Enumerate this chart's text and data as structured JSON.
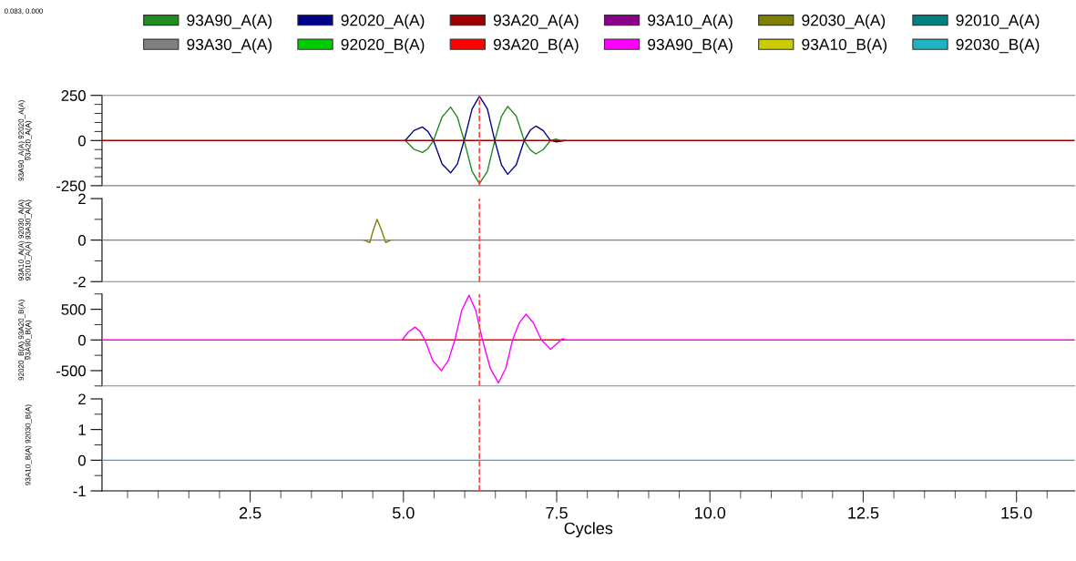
{
  "chart_data": [
    {
      "type": "line",
      "ylabel": "93A90_A(A) 92020_A(A) 93A20_A(A)",
      "annotations": [
        "0.083, 0.000"
      ],
      "legend": "top",
      "grid": false,
      "tick_labels": "y",
      "xlim": [
        0.083,
        15.95
      ],
      "ylim": [
        -250,
        250
      ],
      "yticks": [
        -250,
        {
          "value": -200,
          "label": null
        },
        {
          "value": -150,
          "label": null
        },
        {
          "value": -100,
          "label": null
        },
        {
          "value": -50,
          "label": null
        },
        0,
        {
          "value": 50,
          "label": null
        },
        {
          "value": 100,
          "label": null
        },
        {
          "value": 150,
          "label": null
        },
        {
          "value": 200,
          "label": null
        },
        250
      ],
      "ref_lines": [
        {
          "axis": "x",
          "value": 6.24,
          "color": "#ff4040",
          "line_style": "dashed"
        }
      ],
      "series": [
        {
          "name": "93A90_A(A)",
          "color": "#228b22",
          "x": [
            5.03,
            5.17,
            5.31,
            5.4,
            5.49,
            5.63,
            5.77,
            5.88,
            5.99,
            6.12,
            6.24,
            6.37,
            6.49,
            6.6,
            6.7,
            6.84,
            6.97,
            7.07,
            7.16,
            7.28,
            7.4,
            7.49,
            7.55
          ],
          "values": [
            0,
            -48,
            -66,
            -45,
            0,
            130,
            185,
            130,
            0,
            -170,
            -239,
            -170,
            0,
            135,
            189,
            135,
            0,
            -52,
            -74,
            -50,
            0,
            8,
            0
          ]
        },
        {
          "name": "92020_A(A)",
          "color": "#00008b",
          "x": [
            5.03,
            5.17,
            5.31,
            5.4,
            5.49,
            5.63,
            5.77,
            5.88,
            5.99,
            6.12,
            6.24,
            6.37,
            6.49,
            6.6,
            6.7,
            6.84,
            6.97,
            7.07,
            7.16,
            7.28,
            7.4,
            7.49,
            7.63
          ],
          "values": [
            0,
            55,
            75,
            50,
            0,
            -130,
            -179,
            -130,
            0,
            175,
            245,
            175,
            0,
            -135,
            -187,
            -135,
            0,
            58,
            80,
            55,
            0,
            -7,
            0
          ]
        },
        {
          "name": "93A20_A(A)",
          "color": "#9b0000",
          "x": [
            0.083,
            15.95
          ],
          "values": [
            0,
            0
          ]
        }
      ]
    },
    {
      "type": "line",
      "ylabel": "93A10_A(A) 92030_A(A) 92010_A(A) 93A30_A(A)",
      "legend": "top",
      "grid": false,
      "tick_labels": "y",
      "xlim": [
        0.083,
        15.95
      ],
      "ylim": [
        -2,
        2
      ],
      "yticks": [
        -2,
        {
          "value": -1,
          "label": null
        },
        0,
        {
          "value": 1,
          "label": null
        },
        2
      ],
      "ref_lines": [
        {
          "axis": "x",
          "value": 6.24,
          "color": "#ff4040",
          "line_style": "dashed"
        }
      ],
      "series": [
        {
          "name": "93A10_A(A)",
          "color": "#8b008b"
        },
        {
          "name": "92030_A(A)",
          "color": "#808000",
          "x": [
            4.36,
            4.45,
            4.51,
            4.57,
            4.64,
            4.71,
            4.79
          ],
          "values": [
            0,
            -0.12,
            0.5,
            1.0,
            0.5,
            -0.12,
            0
          ]
        },
        {
          "name": "92010_A(A)",
          "color": "#008080"
        },
        {
          "name": "93A30_A(A)",
          "color": "#808080",
          "x": [
            0.083,
            15.95
          ],
          "values": [
            0,
            0
          ]
        }
      ]
    },
    {
      "type": "line",
      "ylabel": "92020_B(A) 93A20_B(A) 93A90_B(A)",
      "legend": "top",
      "grid": false,
      "tick_labels": "y",
      "xlim": [
        0.083,
        15.95
      ],
      "ylim": [
        -750,
        750
      ],
      "yticks": [
        {
          "value": -750,
          "label": null
        },
        -500,
        {
          "value": -250,
          "label": null
        },
        0,
        {
          "value": 250,
          "label": null
        },
        500,
        {
          "value": 750,
          "label": null
        }
      ],
      "ref_lines": [
        {
          "axis": "x",
          "value": 6.24,
          "color": "#ff4040",
          "line_style": "dashed"
        }
      ],
      "series": [
        {
          "name": "92020_B(A)",
          "color": "#00cc00"
        },
        {
          "name": "93A20_B(A)",
          "color": "#ff0000",
          "x": [
            4.98,
            7.64
          ],
          "values": [
            0,
            0
          ]
        },
        {
          "name": "93A90_B(A)",
          "color": "#ff00ff",
          "x": [
            0.083,
            4.98,
            5.08,
            5.19,
            5.27,
            5.35,
            5.48,
            5.62,
            5.73,
            5.84,
            5.95,
            6.07,
            6.18,
            6.29,
            6.42,
            6.55,
            6.67,
            6.78,
            6.89,
            7.0,
            7.12,
            7.25,
            7.4,
            7.57,
            7.6,
            7.64,
            15.95
          ],
          "values": [
            0,
            0,
            130,
            210,
            140,
            0,
            -340,
            -500,
            -340,
            0,
            480,
            730,
            480,
            0,
            -470,
            -700,
            -460,
            0,
            280,
            420,
            280,
            0,
            -150,
            0,
            20,
            0,
            0
          ]
        }
      ]
    },
    {
      "type": "line",
      "ylabel": "93A10_B(A) 92030_B(A)",
      "xlabel": "Cycles",
      "legend": "top",
      "grid": false,
      "xlim": [
        0.083,
        15.95
      ],
      "ylim": [
        -1,
        2
      ],
      "xticks": [
        {
          "value": 0.5,
          "label": null
        },
        {
          "value": 1,
          "label": null
        },
        {
          "value": 1.5,
          "label": null
        },
        {
          "value": 2,
          "label": null
        },
        {
          "value": 2.5,
          "label": "2.5"
        },
        {
          "value": 3,
          "label": null
        },
        {
          "value": 3.5,
          "label": null
        },
        {
          "value": 4,
          "label": null
        },
        {
          "value": 4.5,
          "label": null
        },
        {
          "value": 5,
          "label": "5.0"
        },
        {
          "value": 5.5,
          "label": null
        },
        {
          "value": 6,
          "label": null
        },
        {
          "value": 6.5,
          "label": null
        },
        {
          "value": 7,
          "label": null
        },
        {
          "value": 7.5,
          "label": "7.5"
        },
        {
          "value": 8,
          "label": null
        },
        {
          "value": 8.5,
          "label": null
        },
        {
          "value": 9,
          "label": null
        },
        {
          "value": 9.5,
          "label": null
        },
        {
          "value": 10,
          "label": "10.0"
        },
        {
          "value": 10.5,
          "label": null
        },
        {
          "value": 11,
          "label": null
        },
        {
          "value": 11.5,
          "label": null
        },
        {
          "value": 12,
          "label": null
        },
        {
          "value": 12.5,
          "label": "12.5"
        },
        {
          "value": 13,
          "label": null
        },
        {
          "value": 13.5,
          "label": null
        },
        {
          "value": 14,
          "label": null
        },
        {
          "value": 14.5,
          "label": null
        },
        {
          "value": 15,
          "label": "15.0"
        },
        {
          "value": 15.5,
          "label": null
        }
      ],
      "yticks": [
        -1,
        {
          "value": -0.5,
          "label": null
        },
        0,
        {
          "value": 0.5,
          "label": null
        },
        1,
        {
          "value": 1.5,
          "label": null
        },
        2
      ],
      "ref_lines": [
        {
          "axis": "x",
          "value": 6.24,
          "color": "#ff4040",
          "line_style": "dashed"
        }
      ],
      "series": [
        {
          "name": "93A10_B(A)",
          "color": "#cccc00"
        },
        {
          "name": "92030_B(A)",
          "color": "#20b2c0",
          "x": [
            0.083,
            15.95
          ],
          "values": [
            0,
            0
          ]
        }
      ]
    }
  ]
}
